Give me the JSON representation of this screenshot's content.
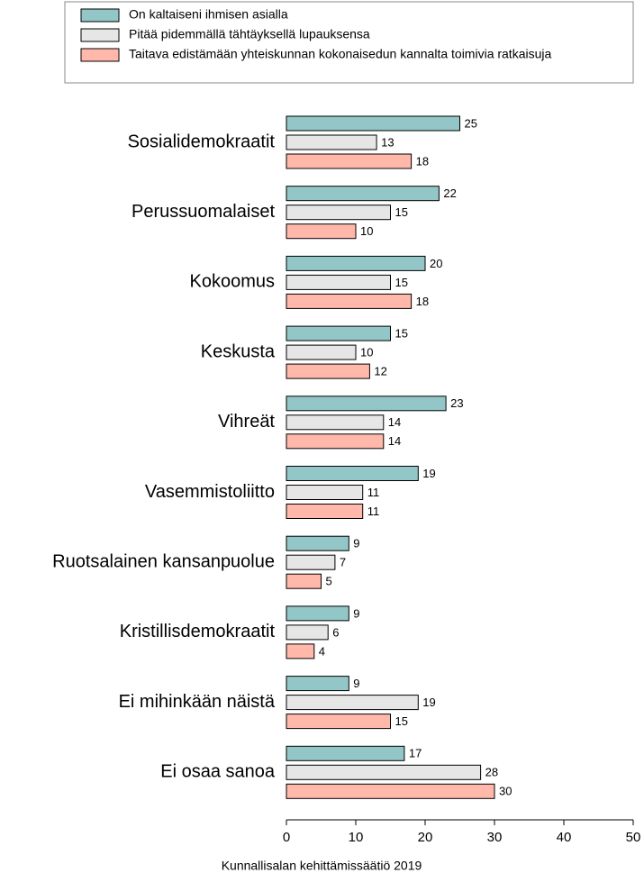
{
  "chart_data": {
    "type": "hbar",
    "categories": [
      "Sosialidemokraatit",
      "Perussuomalaiset",
      "Kokoomus",
      "Keskusta",
      "Vihreät",
      "Vasemmistoliitto",
      "Ruotsalainen kansanpuolue",
      "Kristillisdemokraatit",
      "Ei mihinkään näistä",
      "Ei osaa sanoa"
    ],
    "series": [
      {
        "name": "On kaltaiseni ihmisen asialla",
        "color": "#93c6c6",
        "values": [
          25,
          22,
          20,
          15,
          23,
          19,
          9,
          9,
          9,
          17
        ]
      },
      {
        "name": "Pitää pidemmällä tähtäyksellä lupauksensa",
        "color": "#e6e6e6",
        "values": [
          13,
          15,
          15,
          10,
          14,
          11,
          7,
          6,
          19,
          28
        ]
      },
      {
        "name": "Taitava edistämään yhteiskunnan kokonaisedun kannalta toimivia ratkaisuja",
        "color": "#ffb8aa",
        "values": [
          18,
          10,
          18,
          12,
          14,
          11,
          5,
          4,
          15,
          30
        ]
      }
    ],
    "xlim": [
      0,
      50
    ],
    "xticks": [
      0,
      10,
      20,
      30,
      40,
      50
    ],
    "legend": "top",
    "source": "Kunnallisalan kehittämissäätiö 2019"
  }
}
